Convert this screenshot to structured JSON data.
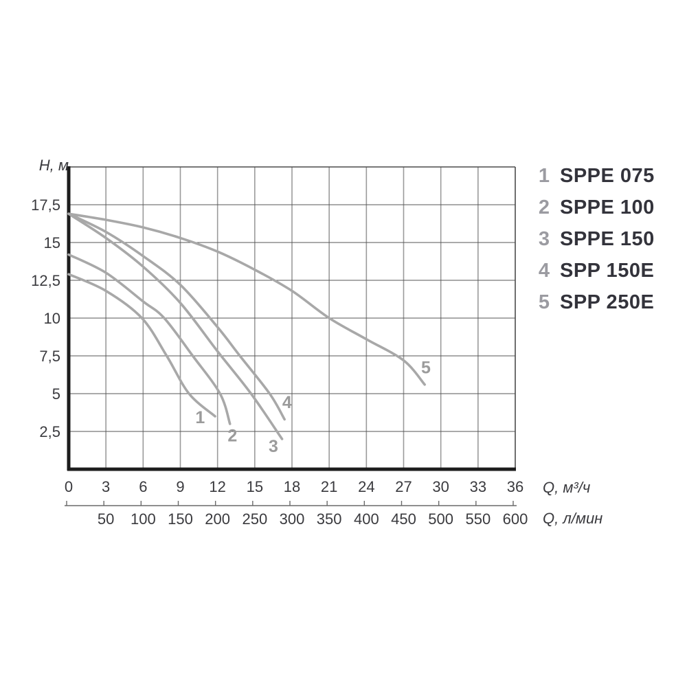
{
  "colors": {
    "background": "#ffffff",
    "curve": "#a8a8a8",
    "curve_label": "#9b9b9b",
    "grid_vertical": "#9a9a9a",
    "grid_horizontal": "#555555",
    "axis_main": "#1c1c1c",
    "border_thin": "#4a4a4a",
    "tick_text": "#3a3a3e",
    "secondary_axis": "#6a6a6a",
    "legend_num": "#9b9ba1",
    "legend_text": "#33333b"
  },
  "axes": {
    "y": {
      "title": "H, м",
      "min": 0,
      "max": 20,
      "grid_step": 2.5,
      "ticks": [
        {
          "value": 2.5,
          "label": "2,5"
        },
        {
          "value": 5,
          "label": "5"
        },
        {
          "value": 7.5,
          "label": "7,5"
        },
        {
          "value": 10,
          "label": "10"
        },
        {
          "value": 12.5,
          "label": "12,5"
        },
        {
          "value": 15,
          "label": "15"
        },
        {
          "value": 17.5,
          "label": "17,5"
        }
      ]
    },
    "x_primary": {
      "title": "Q, м³/ч",
      "min": 0,
      "max": 36,
      "grid_step": 3,
      "ticks": [
        {
          "value": 0,
          "label": "0"
        },
        {
          "value": 3,
          "label": "3"
        },
        {
          "value": 6,
          "label": "6"
        },
        {
          "value": 9,
          "label": "9"
        },
        {
          "value": 12,
          "label": "12"
        },
        {
          "value": 15,
          "label": "15"
        },
        {
          "value": 18,
          "label": "18"
        },
        {
          "value": 21,
          "label": "21"
        },
        {
          "value": 24,
          "label": "24"
        },
        {
          "value": 27,
          "label": "27"
        },
        {
          "value": 30,
          "label": "30"
        },
        {
          "value": 33,
          "label": "33"
        },
        {
          "value": 36,
          "label": "36"
        }
      ]
    },
    "x_secondary": {
      "title": "Q, л/мин",
      "ticks": [
        {
          "value": 3,
          "label": "50"
        },
        {
          "value": 6,
          "label": "100"
        },
        {
          "value": 9,
          "label": "150"
        },
        {
          "value": 12,
          "label": "200"
        },
        {
          "value": 15,
          "label": "250"
        },
        {
          "value": 18,
          "label": "300"
        },
        {
          "value": 21,
          "label": "350"
        },
        {
          "value": 24,
          "label": "400"
        },
        {
          "value": 27,
          "label": "450"
        },
        {
          "value": 30,
          "label": "500"
        },
        {
          "value": 33,
          "label": "550"
        },
        {
          "value": 36,
          "label": "600"
        }
      ]
    }
  },
  "chart_data": {
    "type": "line",
    "title": "",
    "xlabel": "Q, м³/ч",
    "ylabel": "H, м",
    "xlim": [
      0,
      36
    ],
    "ylim": [
      0,
      20
    ],
    "grid": true,
    "legend_position": "right-outside",
    "series": [
      {
        "id": "1",
        "name": "SPPE 075",
        "label_pos": [
          10.6,
          3.4
        ],
        "points": [
          [
            0,
            12.9
          ],
          [
            3,
            11.8
          ],
          [
            5.9,
            10.0
          ],
          [
            7.9,
            7.5
          ],
          [
            9.7,
            5.0
          ],
          [
            11.8,
            3.5
          ]
        ]
      },
      {
        "id": "2",
        "name": "SPPE 100",
        "label_pos": [
          13.2,
          2.2
        ],
        "points": [
          [
            0,
            14.2
          ],
          [
            3,
            13.0
          ],
          [
            6,
            11.1
          ],
          [
            7.7,
            10.0
          ],
          [
            10,
            7.5
          ],
          [
            12.2,
            5.0
          ],
          [
            13.0,
            3.0
          ]
        ]
      },
      {
        "id": "3",
        "name": "SPPE 150",
        "label_pos": [
          16.5,
          1.5
        ],
        "points": [
          [
            0,
            16.9
          ],
          [
            3,
            15.3
          ],
          [
            6,
            13.4
          ],
          [
            9,
            11.0
          ],
          [
            12,
            7.8
          ],
          [
            14.7,
            5.0
          ],
          [
            17.2,
            2.0
          ]
        ]
      },
      {
        "id": "4",
        "name": "SPP 150E",
        "label_pos": [
          17.6,
          4.4
        ],
        "points": [
          [
            0,
            16.9
          ],
          [
            3,
            15.7
          ],
          [
            6,
            14.1
          ],
          [
            9,
            12.2
          ],
          [
            12,
            9.4
          ],
          [
            13.8,
            7.5
          ],
          [
            16.2,
            5.0
          ],
          [
            17.4,
            3.3
          ]
        ]
      },
      {
        "id": "5",
        "name": "SPP 250E",
        "label_pos": [
          28.8,
          6.7
        ],
        "points": [
          [
            0,
            16.9
          ],
          [
            3,
            16.5
          ],
          [
            6,
            16.0
          ],
          [
            9,
            15.3
          ],
          [
            12,
            14.4
          ],
          [
            15,
            13.2
          ],
          [
            18,
            11.8
          ],
          [
            21,
            10.0
          ],
          [
            24,
            8.6
          ],
          [
            27,
            7.2
          ],
          [
            28.7,
            5.6
          ]
        ]
      }
    ]
  },
  "legend": {
    "items": [
      {
        "num": "1",
        "label": "SPPE 075"
      },
      {
        "num": "2",
        "label": "SPPE 100"
      },
      {
        "num": "3",
        "label": "SPPE 150"
      },
      {
        "num": "4",
        "label": "SPP 150E"
      },
      {
        "num": "5",
        "label": "SPP 250E"
      }
    ]
  }
}
